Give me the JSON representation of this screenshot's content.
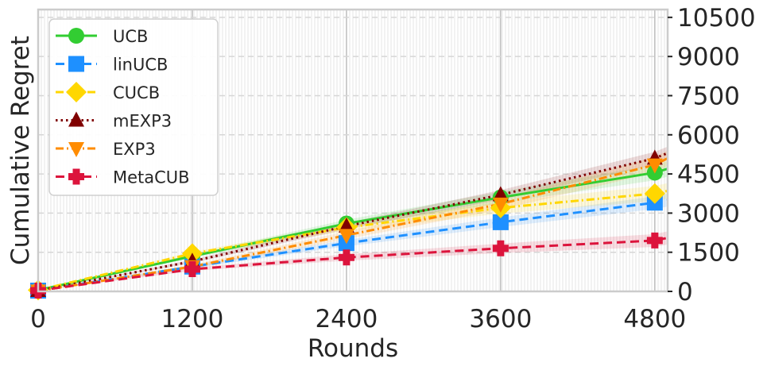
{
  "chart_data": {
    "type": "line",
    "title": "",
    "xlabel": "Rounds",
    "ylabel": "Cumulative Regret",
    "xlim": [
      0,
      4900
    ],
    "ylim": [
      0,
      10800
    ],
    "xticks": [
      0,
      1200,
      2400,
      3600,
      4800
    ],
    "xtick_labels": [
      "0",
      "1200",
      "2400",
      "3600",
      "4800"
    ],
    "yticks": [
      0,
      1500,
      3000,
      4500,
      6000,
      7500,
      9000,
      10500
    ],
    "ytick_labels": [
      "0",
      "1500",
      "3000",
      "4500",
      "6000",
      "7500",
      "9000",
      "10500"
    ],
    "y_axis_side": "right",
    "grid": true,
    "legend_position": "top-left",
    "x": [
      0,
      1200,
      2400,
      3600,
      4800,
      4900
    ],
    "series": [
      {
        "name": "UCB",
        "color": "#32cd32",
        "linestyle": "solid",
        "marker": "circle",
        "values": [
          50,
          1350,
          2600,
          3600,
          4550,
          4700
        ],
        "band": 300
      },
      {
        "name": "linUCB",
        "color": "#1e90ff",
        "linestyle": "dashed",
        "marker": "square",
        "values": [
          30,
          950,
          1850,
          2650,
          3400,
          3500
        ],
        "band": 250
      },
      {
        "name": "CUCB",
        "color": "#ffd700",
        "linestyle": "dashdot",
        "marker": "diamond",
        "values": [
          50,
          1450,
          2450,
          3200,
          3750,
          3850
        ],
        "band": 300
      },
      {
        "name": "mEXP3",
        "color": "#800000",
        "linestyle": "dotted",
        "marker": "triangle-up",
        "values": [
          30,
          1150,
          2500,
          3700,
          5100,
          5300
        ],
        "band": 250
      },
      {
        "name": "EXP3",
        "color": "#ff8c00",
        "linestyle": "dashdot",
        "marker": "triangle-down",
        "values": [
          20,
          950,
          2150,
          3350,
          4850,
          5100
        ],
        "band": 300
      },
      {
        "name": "MetaCUB",
        "color": "#dc143c",
        "linestyle": "dashed",
        "marker": "plus",
        "values": [
          30,
          850,
          1300,
          1650,
          1950,
          2050
        ],
        "band": 250
      }
    ]
  }
}
